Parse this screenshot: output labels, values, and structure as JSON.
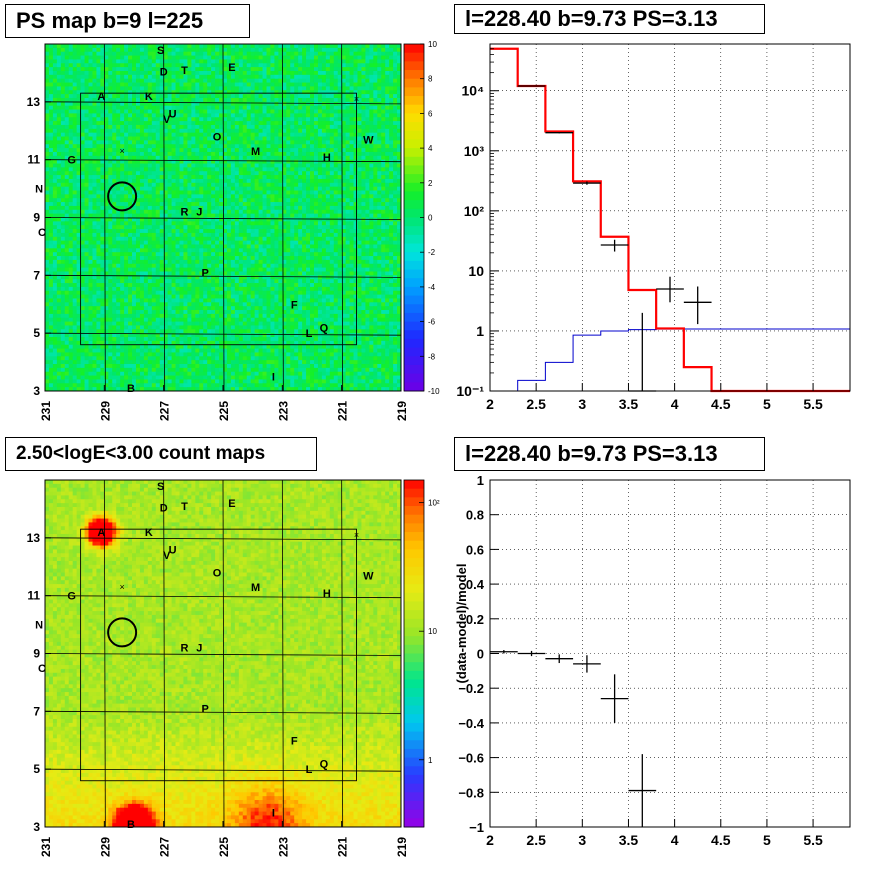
{
  "colors": {
    "frame": "#000000",
    "model_total": "#ff0000",
    "model_background": "#0000cc",
    "data_points": "#000000",
    "grid": "#000000"
  },
  "panels": {
    "ps_map": {
      "title": "PS map b=9 l=225",
      "colorbar_ticks": [
        "10",
        "8",
        "6",
        "4",
        "2",
        "0",
        "-2",
        "-4",
        "-6",
        "-8",
        "-10"
      ]
    },
    "count_map": {
      "title": "2.50<logE<3.00 count maps",
      "colorbar_ticks": [
        "10²",
        "10",
        "1"
      ]
    },
    "spectrum": {
      "title": "l=228.40 b=9.73 PS=3.13"
    },
    "residual": {
      "title": "l=228.40 b=9.73 PS=3.13"
    }
  },
  "sky_maps": {
    "x_ticks": [
      "231",
      "229",
      "227",
      "225",
      "223",
      "221",
      "219"
    ],
    "y_ticks": [
      "13",
      "11",
      "9",
      "7",
      "5",
      "3"
    ],
    "glon_range": [
      231,
      219
    ],
    "glat_range": [
      3,
      15
    ],
    "sources": [
      {
        "label": "S",
        "l": 227.1,
        "b": 14.8
      },
      {
        "label": "D",
        "l": 227.0,
        "b": 14.05
      },
      {
        "label": "T",
        "l": 226.3,
        "b": 14.1
      },
      {
        "label": "E",
        "l": 224.7,
        "b": 14.2
      },
      {
        "label": "A",
        "l": 229.1,
        "b": 13.2
      },
      {
        "label": "K",
        "l": 227.5,
        "b": 13.2
      },
      {
        "label": "U",
        "l": 226.7,
        "b": 12.6
      },
      {
        "label": "V",
        "l": 226.9,
        "b": 12.4
      },
      {
        "label": "O",
        "l": 225.2,
        "b": 11.8
      },
      {
        "label": "W",
        "l": 220.1,
        "b": 11.7
      },
      {
        "label": "M",
        "l": 223.9,
        "b": 11.3
      },
      {
        "label": "H",
        "l": 221.5,
        "b": 11.1
      },
      {
        "label": "G",
        "l": 230.1,
        "b": 11.0
      },
      {
        "label": "N",
        "l": 231.2,
        "b": 10.0
      },
      {
        "label": "R",
        "l": 226.3,
        "b": 9.2
      },
      {
        "label": "J",
        "l": 225.8,
        "b": 9.2
      },
      {
        "label": "C",
        "l": 231.1,
        "b": 8.5
      },
      {
        "label": "P",
        "l": 225.6,
        "b": 7.1
      },
      {
        "label": "F",
        "l": 222.6,
        "b": 6.0
      },
      {
        "label": "Q",
        "l": 221.6,
        "b": 5.2
      },
      {
        "label": "L",
        "l": 222.1,
        "b": 5.0
      },
      {
        "label": "I",
        "l": 223.3,
        "b": 3.5
      },
      {
        "label": "B",
        "l": 228.1,
        "b": 3.1
      }
    ],
    "candidate_circle": {
      "l": 228.4,
      "b": 9.73
    },
    "crosses": [
      {
        "l": 228.4,
        "b": 11.3
      },
      {
        "l": 220.5,
        "b": 13.1
      }
    ]
  },
  "chart_data": [
    {
      "type": "line",
      "title": "l=228.40 b=9.73 PS=3.13",
      "xlabel": "",
      "ylabel": "",
      "xlim": [
        2,
        5.9
      ],
      "ylim": [
        0.1,
        60000
      ],
      "ylog": true,
      "grid": true,
      "x_ticks": [
        "2",
        "2.5",
        "3",
        "3.5",
        "4",
        "4.5",
        "5",
        "5.5"
      ],
      "y_ticks": [
        "10⁻¹",
        "1",
        "10",
        "10²",
        "10³",
        "10⁴"
      ],
      "bin_edges": [
        2.0,
        2.3,
        2.6,
        2.9,
        3.2,
        3.5,
        3.8,
        4.1,
        4.4,
        4.7,
        5.0,
        5.3,
        5.6,
        5.9
      ],
      "series": [
        {
          "values": [
            50000,
            12000,
            2100,
            310,
            37,
            4.8,
            1.1,
            0.25,
            0.1,
            0.1,
            0.1,
            0.1,
            0.1
          ]
        },
        {
          "values": [
            0.1,
            0.15,
            0.3,
            0.85,
            1.0,
            1.05,
            1.07,
            1.08,
            1.08,
            1.08,
            1.08,
            1.08,
            1.08
          ]
        }
      ],
      "points": [
        {
          "x": 2.45,
          "xerr": 0.15,
          "y": 12000,
          "ylo": 11900,
          "yhi": 12100
        },
        {
          "x": 2.75,
          "xerr": 0.15,
          "y": 2000,
          "ylo": 1950,
          "yhi": 2050
        },
        {
          "x": 3.05,
          "xerr": 0.15,
          "y": 290,
          "ylo": 272,
          "yhi": 308
        },
        {
          "x": 3.35,
          "xerr": 0.15,
          "y": 27,
          "ylo": 21,
          "yhi": 33
        },
        {
          "x": 3.65,
          "xerr": 0.15,
          "y": 0.1,
          "ylo": 0.1,
          "yhi": 2.0
        },
        {
          "x": 3.95,
          "xerr": 0.15,
          "y": 5,
          "ylo": 3,
          "yhi": 8
        },
        {
          "x": 4.25,
          "xerr": 0.15,
          "y": 3,
          "ylo": 1.3,
          "yhi": 5.5
        }
      ]
    },
    {
      "type": "scatter",
      "title": "l=228.40 b=9.73 PS=3.13",
      "xlabel": "",
      "ylabel": "(data-model)/model",
      "xlim": [
        2,
        5.9
      ],
      "ylim": [
        -1,
        1
      ],
      "grid": true,
      "x_ticks": [
        "2",
        "2.5",
        "3",
        "3.5",
        "4",
        "4.5",
        "5",
        "5.5"
      ],
      "y_ticks": [
        "−1",
        "−0.8",
        "−0.6",
        "−0.4",
        "−0.2",
        "0",
        "0.2",
        "0.4",
        "0.6",
        "0.8",
        "1"
      ],
      "points": [
        {
          "x": 2.15,
          "xerr": 0.15,
          "y": 0.01,
          "err": 0.01
        },
        {
          "x": 2.45,
          "xerr": 0.15,
          "y": 0.0,
          "err": 0.015
        },
        {
          "x": 2.75,
          "xerr": 0.15,
          "y": -0.03,
          "err": 0.025
        },
        {
          "x": 3.05,
          "xerr": 0.15,
          "y": -0.06,
          "err": 0.05
        },
        {
          "x": 3.35,
          "xerr": 0.15,
          "y": -0.26,
          "err": 0.14
        },
        {
          "x": 3.65,
          "xerr": 0.15,
          "y": -0.79,
          "err": 0.21
        }
      ]
    }
  ]
}
